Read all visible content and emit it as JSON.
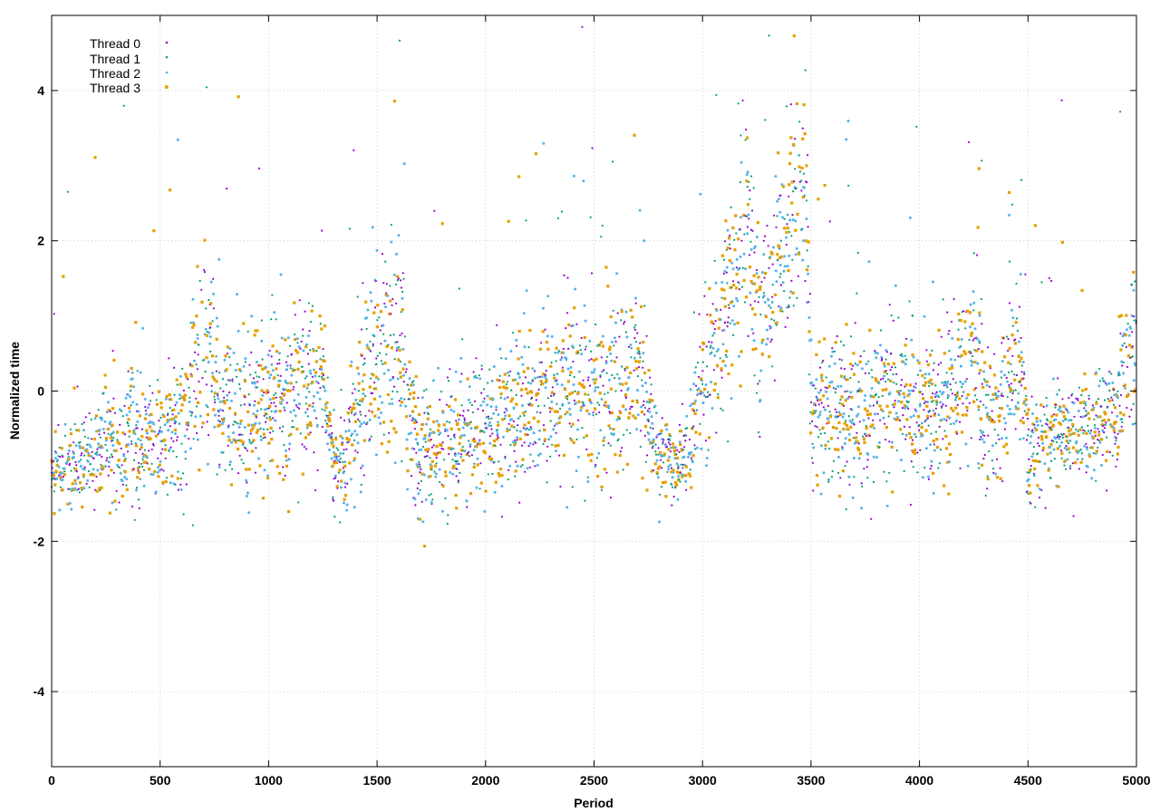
{
  "chart_data": {
    "type": "scatter",
    "title": "",
    "xlabel": "Period",
    "ylabel": "Normalized time",
    "xlim": [
      0,
      5000
    ],
    "ylim": [
      -5,
      5
    ],
    "xticks": [
      0,
      500,
      1000,
      1500,
      2000,
      2500,
      3000,
      3500,
      4000,
      4500,
      5000
    ],
    "yticks": [
      -4,
      -2,
      0,
      2,
      4
    ],
    "xtick_labels": [
      "0",
      "500",
      "1000",
      "1500",
      "2000",
      "2500",
      "3000",
      "3500",
      "4000",
      "4500",
      "5000"
    ],
    "ytick_labels": [
      "-4",
      "-2",
      "0",
      "2",
      "4"
    ],
    "grid": true,
    "legend_position": "top-left",
    "series": [
      {
        "name": "Thread 0",
        "color": "#9400d3",
        "marker": "dot"
      },
      {
        "name": "Thread 1",
        "color": "#009e73",
        "marker": "dot"
      },
      {
        "name": "Thread 2",
        "color": "#56b4e9",
        "marker": "dot"
      },
      {
        "name": "Thread 3",
        "color": "#e69f00",
        "marker": "square"
      }
    ],
    "trend_description_points": {
      "x": [
        0,
        100,
        200,
        300,
        400,
        500,
        600,
        700,
        800,
        900,
        1000,
        1100,
        1200,
        1250,
        1300,
        1350,
        1400,
        1500,
        1600,
        1650,
        1700,
        1800,
        1900,
        2000,
        2100,
        2200,
        2300,
        2400,
        2500,
        2600,
        2700,
        2760,
        2800,
        2900,
        2950,
        3000,
        3100,
        3200,
        3250,
        3300,
        3400,
        3480,
        3500,
        3600,
        3700,
        3800,
        3900,
        4000,
        4100,
        4200,
        4260,
        4300,
        4400,
        4470,
        4500,
        4600,
        4700,
        4800,
        4900,
        5000
      ],
      "mean": [
        -1.0,
        -0.95,
        -0.85,
        -0.6,
        -0.5,
        -0.65,
        -0.5,
        0.6,
        -0.3,
        -0.2,
        -0.1,
        -0.05,
        0.2,
        0.1,
        -1.0,
        -0.9,
        -0.2,
        0.5,
        0.8,
        -0.3,
        -0.7,
        -0.7,
        -0.5,
        -0.5,
        -0.3,
        -0.3,
        0.2,
        0.1,
        -0.2,
        0.1,
        0.3,
        -0.3,
        -0.9,
        -0.9,
        -0.7,
        0.2,
        1.0,
        2.3,
        0.9,
        1.4,
        2.2,
        2.8,
        -0.4,
        -0.2,
        -0.3,
        -0.2,
        -0.1,
        -0.2,
        -0.2,
        0.3,
        0.6,
        -0.4,
        0.0,
        0.4,
        -0.9,
        -0.6,
        -0.6,
        -0.5,
        -0.3,
        0.8
      ],
      "spread": [
        0.35,
        0.4,
        0.45,
        0.55,
        0.6,
        0.5,
        0.6,
        0.9,
        0.7,
        0.7,
        0.7,
        0.7,
        0.8,
        0.5,
        0.4,
        0.4,
        0.7,
        0.9,
        1.0,
        0.6,
        0.6,
        0.6,
        0.6,
        0.6,
        0.7,
        0.7,
        0.8,
        0.8,
        0.8,
        0.8,
        0.8,
        0.5,
        0.4,
        0.4,
        0.5,
        0.6,
        0.9,
        1.0,
        0.9,
        0.8,
        0.9,
        1.0,
        0.6,
        0.65,
        0.65,
        0.7,
        0.7,
        0.7,
        0.7,
        0.7,
        0.8,
        0.6,
        0.8,
        0.8,
        0.45,
        0.45,
        0.45,
        0.45,
        0.5,
        1.0
      ]
    }
  }
}
